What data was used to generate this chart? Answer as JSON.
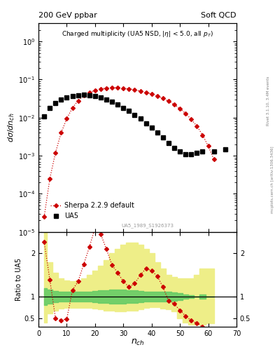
{
  "title_left": "200 GeV ppbar",
  "title_right": "Soft QCD",
  "plot_title": "Charged multiplicity (UA5 NSD, |\\eta| < 5.0, all p_{T})",
  "ylabel_main": "d\\sigma/dn_{ch}",
  "ylabel_ratio": "Ratio to UA5",
  "xlabel": "n_{ch}",
  "watermark": "UA5_1989_S1926373",
  "right_label": "mcplots.cern.ch [arXiv:1306.3436]",
  "rivet_label": "Rivet 3.1.10, 3.4M events",
  "ua5_x": [
    2,
    4,
    6,
    8,
    10,
    12,
    14,
    16,
    18,
    20,
    22,
    24,
    26,
    28,
    30,
    32,
    34,
    36,
    38,
    40,
    42,
    44,
    46,
    48,
    50,
    52,
    54,
    56,
    58,
    62,
    66
  ],
  "ua5_y": [
    0.011,
    0.018,
    0.024,
    0.03,
    0.034,
    0.037,
    0.039,
    0.04,
    0.039,
    0.037,
    0.034,
    0.03,
    0.026,
    0.022,
    0.018,
    0.015,
    0.012,
    0.0095,
    0.0072,
    0.0055,
    0.004,
    0.003,
    0.0022,
    0.0016,
    0.0013,
    0.0011,
    0.0011,
    0.0012,
    0.0013,
    0.0013,
    0.0015
  ],
  "sherpa_x": [
    2,
    4,
    6,
    8,
    10,
    12,
    14,
    16,
    18,
    20,
    22,
    24,
    26,
    28,
    30,
    32,
    34,
    36,
    38,
    40,
    42,
    44,
    46,
    48,
    50,
    52,
    54,
    56,
    58,
    60,
    62
  ],
  "sherpa_y": [
    2.5e-05,
    0.00025,
    0.0012,
    0.004,
    0.0095,
    0.018,
    0.028,
    0.038,
    0.046,
    0.052,
    0.057,
    0.06,
    0.061,
    0.061,
    0.059,
    0.057,
    0.054,
    0.05,
    0.046,
    0.042,
    0.037,
    0.032,
    0.027,
    0.022,
    0.017,
    0.013,
    0.009,
    0.006,
    0.0035,
    0.0018,
    0.0008
  ],
  "ratio_sherpa_x": [
    2,
    4,
    6,
    8,
    10,
    12,
    14,
    16,
    18,
    20,
    22,
    24,
    26,
    28,
    30,
    32,
    34,
    36,
    38,
    40,
    42,
    44,
    46,
    48,
    50,
    52,
    54,
    56,
    58,
    60,
    62
  ],
  "ratio_sherpa_y": [
    2.27,
    1.39,
    0.5,
    0.45,
    0.48,
    1.15,
    1.35,
    1.75,
    2.15,
    2.6,
    2.45,
    2.1,
    1.73,
    1.55,
    1.35,
    1.22,
    1.3,
    1.5,
    1.65,
    1.6,
    1.47,
    1.22,
    0.9,
    0.83,
    0.68,
    0.55,
    0.44,
    0.38,
    0.3,
    0.25,
    0.2
  ],
  "green_band_lo": [
    0.8,
    0.84,
    0.87,
    0.88,
    0.88,
    0.88,
    0.88,
    0.88,
    0.88,
    0.87,
    0.86,
    0.85,
    0.84,
    0.84,
    0.84,
    0.85,
    0.86,
    0.87,
    0.88,
    0.88,
    0.88,
    0.88,
    0.88,
    0.9,
    0.92,
    0.95,
    0.97,
    1.0,
    1.05,
    1.0,
    1.0
  ],
  "green_band_hi": [
    1.2,
    1.16,
    1.13,
    1.12,
    1.12,
    1.12,
    1.12,
    1.12,
    1.12,
    1.13,
    1.14,
    1.15,
    1.16,
    1.16,
    1.16,
    1.15,
    1.14,
    1.13,
    1.12,
    1.12,
    1.12,
    1.12,
    1.12,
    1.1,
    1.08,
    1.05,
    1.03,
    1.0,
    0.95,
    1.0,
    1.0
  ],
  "yellow_band_lo": [
    0.4,
    0.6,
    0.68,
    0.72,
    0.73,
    0.74,
    0.74,
    0.74,
    0.73,
    0.72,
    0.7,
    0.68,
    0.67,
    0.66,
    0.66,
    0.67,
    0.68,
    0.7,
    0.73,
    0.75,
    0.75,
    0.72,
    0.7,
    0.65,
    0.5,
    0.4,
    0.35,
    0.35,
    0.35,
    0.38,
    0.38
  ],
  "yellow_band_hi": [
    2.5,
    1.8,
    1.55,
    1.42,
    1.38,
    1.35,
    1.38,
    1.42,
    1.5,
    1.6,
    1.72,
    1.85,
    2.0,
    2.1,
    2.2,
    2.25,
    2.25,
    2.2,
    2.1,
    2.0,
    1.8,
    1.65,
    1.5,
    1.45,
    1.42,
    1.42,
    1.42,
    1.5,
    1.65,
    1.65,
    1.65
  ],
  "ua5_color": "#000000",
  "sherpa_color": "#cc0000",
  "green_color": "#66cc66",
  "yellow_color": "#eeee88",
  "xlim": [
    0,
    70
  ],
  "ylim_main": [
    1e-05,
    3.0
  ],
  "ylim_ratio": [
    0.3,
    2.5
  ]
}
